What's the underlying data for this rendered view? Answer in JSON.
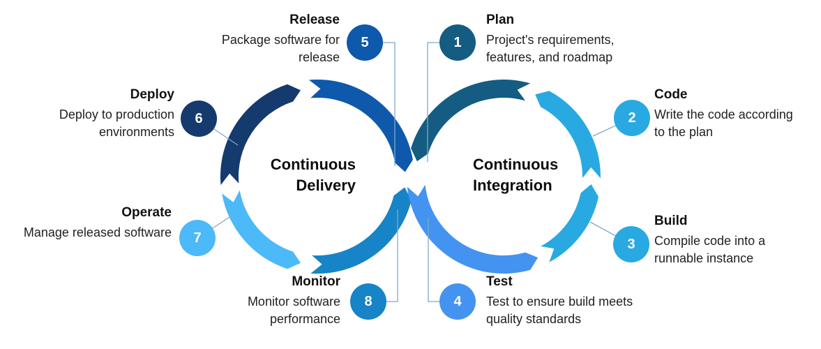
{
  "loops": {
    "left": {
      "label_lines": [
        "Continuous",
        "Delivery"
      ]
    },
    "right": {
      "label_lines": [
        "Continuous",
        "Integration"
      ]
    }
  },
  "stages": [
    {
      "num": "1",
      "title": "Plan",
      "desc": "Project's requirements, features, and roadmap",
      "color": "#145c82"
    },
    {
      "num": "2",
      "title": "Code",
      "desc": "Write the code according to the plan",
      "color": "#29a9e1"
    },
    {
      "num": "3",
      "title": "Build",
      "desc": "Compile code into a runnable instance",
      "color": "#29a9e1"
    },
    {
      "num": "4",
      "title": "Test",
      "desc": "Test to ensure build meets quality standards",
      "color": "#4493f0"
    },
    {
      "num": "5",
      "title": "Release",
      "desc": "Package software for release",
      "color": "#0e59ab"
    },
    {
      "num": "6",
      "title": "Deploy",
      "desc": "Deploy to production environments",
      "color": "#153a6d"
    },
    {
      "num": "7",
      "title": "Operate",
      "desc": "Manage released software",
      "color": "#4cb9f8"
    },
    {
      "num": "8",
      "title": "Monitor",
      "desc": "Monitor software performance",
      "color": "#1684c7"
    }
  ],
  "connector_color": "#7fa8cc"
}
